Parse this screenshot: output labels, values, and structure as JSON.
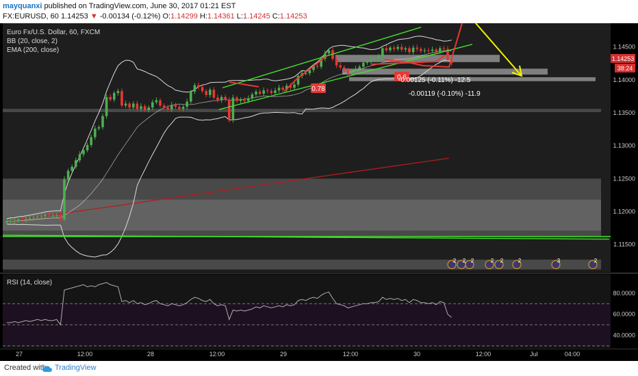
{
  "header": {
    "author": "mayquanxi",
    "published": "published on TradingView.com, June 30, 2017 01:21 EST",
    "symbol": "FX:EURUSD, 60",
    "last": "1.14253",
    "change": "-0.00134 (-0.12%)",
    "o_label": "O:",
    "o": "1.14299",
    "h_label": "H:",
    "h": "1.14361",
    "l_label": "L:",
    "l": "1.14245",
    "c_label": "C:",
    "c": "1.14253"
  },
  "legend": {
    "title": "Euro Fx/U.S. Dollar, 60, FXCM",
    "bb": "BB (20, close, 2)",
    "ema": "EMA (200, close)"
  },
  "annotations": {
    "fib_a": "0.78",
    "fib_b": "0.6",
    "measure_1": "-0.00125 (-0.11%) -12.5",
    "measure_2": "-0.00119 (-0.10%) -11.9",
    "price_tag": "1.14253",
    "time_tag": "38:24"
  },
  "rsi": {
    "label": "RSI (14, close)",
    "ticks": [
      "80.0000",
      "60.0000",
      "40.0000"
    ]
  },
  "events": [
    "2",
    "2",
    "2",
    "2",
    "2",
    "2",
    "3",
    "2"
  ],
  "footer": {
    "created": "Created with",
    "brand": "TradingView"
  },
  "colors": {
    "background": "#000000",
    "panel": "#1e1e1e",
    "candle_up": "#4caf50",
    "candle_down": "#e53935",
    "bollinger": "#dcdcdc",
    "ema": "#b71c1c",
    "trend_green": "#43e02b",
    "arrow_yellow": "#f5f500",
    "rsi_line": "#b0b0b0",
    "rsi_band": "#1d1020"
  },
  "chart_data": [
    {
      "type": "candlestick",
      "title": "Euro Fx/U.S. Dollar, 60, FXCM",
      "x_tick_labels": [
        "27",
        "12:00",
        "28",
        "12:00",
        "29",
        "12:00",
        "30",
        "12:00",
        "Jul",
        "04:00"
      ],
      "y_tick_labels": [
        "1.14500",
        "1.14000",
        "1.13500",
        "1.13000",
        "1.12500",
        "1.12000",
        "1.11500"
      ],
      "ylim": [
        1.1108,
        1.1486
      ],
      "grid": false,
      "candle_count": 117,
      "closes": [
        1.1185,
        1.1186,
        1.1186,
        1.1188,
        1.1187,
        1.1189,
        1.119,
        1.1191,
        1.1192,
        1.1193,
        1.1195,
        1.1194,
        1.1194,
        1.1195,
        1.1188,
        1.1249,
        1.1262,
        1.1268,
        1.1278,
        1.1287,
        1.1293,
        1.1301,
        1.1313,
        1.1326,
        1.1328,
        1.1345,
        1.1374,
        1.137,
        1.138,
        1.1383,
        1.1361,
        1.1364,
        1.1358,
        1.1364,
        1.1356,
        1.136,
        1.1354,
        1.1358,
        1.1366,
        1.1369,
        1.1361,
        1.1358,
        1.1355,
        1.1362,
        1.1359,
        1.1356,
        1.1359,
        1.1367,
        1.1382,
        1.1392,
        1.1389,
        1.1383,
        1.1377,
        1.1385,
        1.1373,
        1.1369,
        1.1374,
        1.137,
        1.1339,
        1.1373,
        1.1368,
        1.137,
        1.1368,
        1.1372,
        1.1378,
        1.1382,
        1.1379,
        1.1384,
        1.1383,
        1.138,
        1.1384,
        1.1388,
        1.1385,
        1.1391,
        1.1388,
        1.1393,
        1.1406,
        1.141,
        1.141,
        1.1415,
        1.1421,
        1.142,
        1.1432,
        1.144,
        1.1445,
        1.1432,
        1.1422,
        1.1419,
        1.1415,
        1.141,
        1.1413,
        1.1417,
        1.142,
        1.1426,
        1.1427,
        1.1431,
        1.1432,
        1.1436,
        1.1448,
        1.1445,
        1.1449,
        1.1447,
        1.145,
        1.1446,
        1.1448,
        1.1442,
        1.1449,
        1.1447,
        1.1444,
        1.1445,
        1.1444,
        1.1446,
        1.1443,
        1.1448,
        1.1447,
        1.143,
        1.14253
      ],
      "ema_200": [
        1.1185,
        1.1281
      ],
      "bollinger_upper_peak": 1.1459,
      "bollinger_lower_min": 1.1145,
      "overlays": {
        "horizontal_zones": [
          [
            1.1427,
            1.1438
          ],
          [
            1.1408,
            1.1417
          ],
          [
            1.1398,
            1.1404
          ],
          [
            1.1351,
            1.1356
          ],
          [
            1.1171,
            1.125
          ],
          [
            1.1162,
            1.1218
          ],
          [
            1.1112,
            1.1127
          ]
        ],
        "trendlines": [
          [
            1.1388,
            1.148
          ],
          [
            1.1355,
            1.1454
          ],
          [
            1.1164,
            1.1158
          ]
        ]
      }
    },
    {
      "type": "line",
      "title": "RSI (14, close)",
      "y_tick_labels": [
        "80.0000",
        "60.0000",
        "40.0000"
      ],
      "ylim": [
        28,
        98
      ],
      "band": [
        30,
        70
      ],
      "values": [
        52,
        52,
        53,
        52,
        53,
        54,
        53,
        54,
        55,
        54,
        55,
        54,
        54,
        55,
        50,
        83,
        84,
        85,
        86,
        87,
        88,
        86,
        87,
        86,
        88,
        89,
        90,
        88,
        87,
        86,
        72,
        73,
        71,
        73,
        70,
        71,
        69,
        70,
        72,
        73,
        70,
        69,
        68,
        70,
        69,
        68,
        69,
        71,
        74,
        76,
        75,
        73,
        72,
        74,
        70,
        68,
        69,
        68,
        55,
        64,
        63,
        64,
        63,
        64,
        65,
        67,
        66,
        68,
        67,
        66,
        67,
        68,
        67,
        69,
        68,
        69,
        73,
        74,
        73,
        75,
        76,
        75,
        78,
        80,
        81,
        75,
        70,
        69,
        68,
        66,
        67,
        68,
        69,
        70,
        70,
        71,
        71,
        72,
        76,
        74,
        75,
        74,
        75,
        73,
        74,
        71,
        74,
        73,
        71,
        71,
        70,
        71,
        69,
        72,
        71,
        60,
        57
      ]
    }
  ]
}
